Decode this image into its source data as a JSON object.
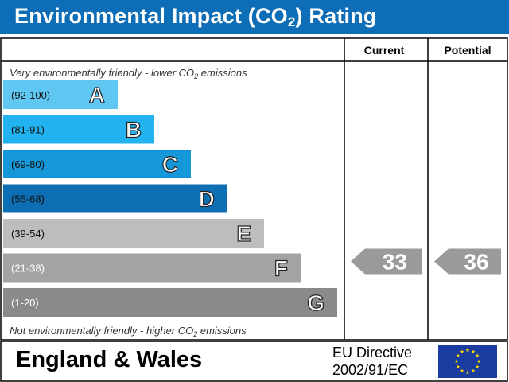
{
  "title": {
    "main": "Environmental Impact (CO",
    "subscript": "2",
    "suffix": ") Rating"
  },
  "columns": {
    "current": "Current",
    "potential": "Potential"
  },
  "top_note": {
    "text": "Very environmentally friendly - lower CO",
    "sub": "2",
    "tail": " emissions"
  },
  "bottom_note": {
    "text": "Not environmentally friendly - higher CO",
    "sub": "2",
    "tail": " emissions"
  },
  "footer": {
    "region": "England & Wales",
    "directive_line1": "EU Directive",
    "directive_line2": "2002/91/EC"
  },
  "eu_flag": {
    "icon": "eu-flag-icon"
  },
  "chart_data": {
    "type": "bar",
    "title": "Environmental Impact (CO2) Rating",
    "bands": [
      {
        "letter": "A",
        "range": "(92-100)",
        "color": "#5fc7f2",
        "label_color": "#111111"
      },
      {
        "letter": "B",
        "range": "(81-91)",
        "color": "#22b2ef",
        "label_color": "#111111"
      },
      {
        "letter": "C",
        "range": "(69-80)",
        "color": "#1597d9",
        "label_color": "#111111"
      },
      {
        "letter": "D",
        "range": "(55-68)",
        "color": "#0e6eb4",
        "label_color": "#111111"
      },
      {
        "letter": "E",
        "range": "(39-54)",
        "color": "#bdbdbd",
        "label_color": "#111111"
      },
      {
        "letter": "F",
        "range": "(21-38)",
        "color": "#a3a3a3",
        "label_color": "#ffffff"
      },
      {
        "letter": "G",
        "range": "(1-20)",
        "color": "#8a8a8a",
        "label_color": "#ffffff"
      }
    ],
    "current": {
      "value": 33,
      "band": "F",
      "color": "#9a9a9a"
    },
    "potential": {
      "value": 36,
      "band": "F",
      "color": "#9a9a9a"
    }
  }
}
